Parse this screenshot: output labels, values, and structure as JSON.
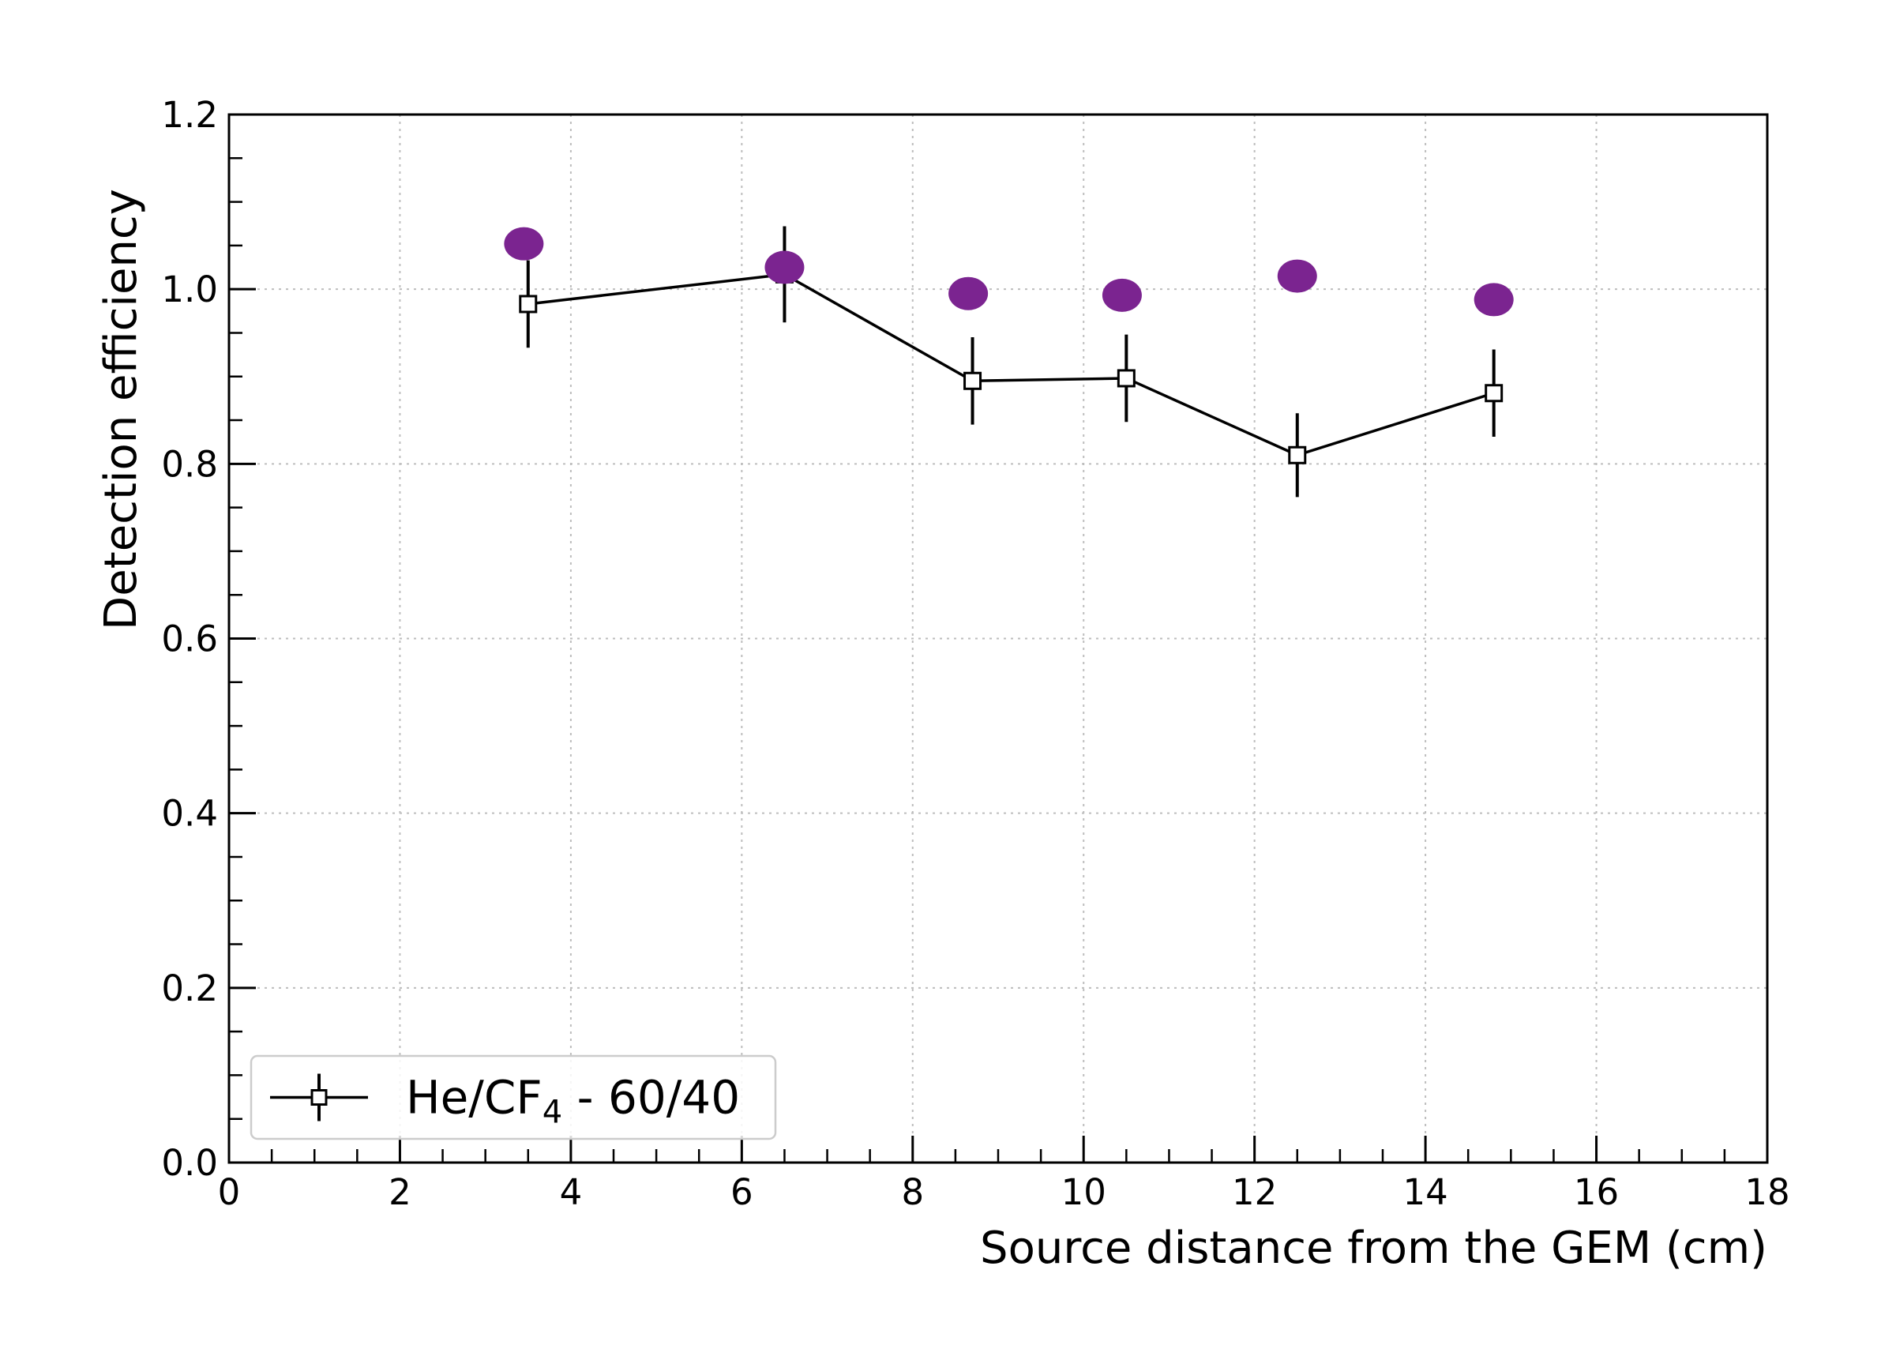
{
  "chart_data": {
    "type": "scatter",
    "title": "",
    "xlabel": "Source distance from the GEM (cm)",
    "ylabel": "Detection efficiency",
    "xlim": [
      0,
      18
    ],
    "ylim": [
      0.0,
      1.2
    ],
    "x_ticks": [
      "0",
      "2",
      "4",
      "6",
      "8",
      "10",
      "12",
      "14",
      "16",
      "18"
    ],
    "y_ticks": [
      "0.0",
      "0.2",
      "0.4",
      "0.6",
      "0.8",
      "1.0",
      "1.2"
    ],
    "grid": true,
    "legend_position": "lower-left",
    "series": [
      {
        "name": "He/CF4 - 60/40",
        "style": "line-with-open-square-markers-and-error-bars",
        "color": "#000000",
        "x": [
          3.5,
          6.5,
          8.7,
          10.5,
          12.5,
          14.8
        ],
        "y": [
          0.983,
          1.017,
          0.895,
          0.898,
          0.81,
          0.881
        ],
        "yerr": [
          0.05,
          0.055,
          0.05,
          0.05,
          0.048,
          0.05
        ]
      },
      {
        "style": "filled-circles",
        "color": "#7b2490",
        "x": [
          3.45,
          6.5,
          8.65,
          10.45,
          12.5,
          14.8
        ],
        "y": [
          1.052,
          1.025,
          0.995,
          0.993,
          1.015,
          0.988
        ]
      }
    ],
    "legend": {
      "label_main": "He/CF",
      "label_sub": "4",
      "label_tail": " - 60/40"
    }
  }
}
